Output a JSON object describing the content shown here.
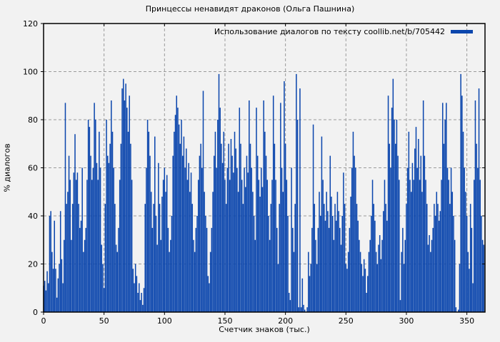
{
  "title": "Принцессы ненавидят драконов (Ольга Пашнина)",
  "legend": {
    "label": "Использование диалогов по тексту coollib.net/b/705442"
  },
  "colors": {
    "background": "#f2f2f2",
    "bar": "#0b46ad",
    "grid": "#9b9b9b",
    "axis": "#000000"
  },
  "chart_data": {
    "type": "bar",
    "title": "Принцессы ненавидят драконов (Ольга Пашнина)",
    "legend_entries": [
      "Использование диалогов по тексту coollib.net/b/705442"
    ],
    "legend_position": "top-right-inside",
    "xlabel": "Счетчик знаков (тыс.)",
    "ylabel": "% диалогов",
    "xlim": [
      0,
      365
    ],
    "ylim": [
      0,
      120
    ],
    "x_ticks": [
      0,
      50,
      100,
      150,
      200,
      250,
      300,
      350
    ],
    "y_ticks": [
      0,
      20,
      40,
      60,
      80,
      100,
      120
    ],
    "grid": true,
    "x_start": 0,
    "x_step": 1,
    "values": [
      11,
      13,
      9,
      17,
      12,
      40,
      42,
      25,
      18,
      38,
      18,
      6,
      14,
      20,
      42,
      22,
      12,
      30,
      87,
      45,
      50,
      65,
      55,
      30,
      45,
      58,
      74,
      55,
      58,
      45,
      35,
      38,
      60,
      25,
      30,
      35,
      55,
      80,
      77,
      65,
      55,
      60,
      87,
      80,
      62,
      55,
      75,
      60,
      28,
      20,
      10,
      45,
      80,
      65,
      62,
      70,
      88,
      75,
      60,
      45,
      28,
      25,
      35,
      55,
      70,
      93,
      97,
      88,
      95,
      85,
      75,
      90,
      70,
      55,
      18,
      12,
      20,
      15,
      8,
      12,
      5,
      8,
      3,
      10,
      45,
      60,
      80,
      75,
      65,
      50,
      35,
      45,
      73,
      40,
      28,
      62,
      45,
      30,
      48,
      55,
      60,
      50,
      57,
      35,
      25,
      30,
      40,
      65,
      75,
      82,
      90,
      85,
      78,
      70,
      80,
      65,
      73,
      60,
      68,
      55,
      62,
      50,
      58,
      45,
      30,
      25,
      35,
      40,
      55,
      65,
      70,
      60,
      92,
      50,
      40,
      35,
      15,
      12,
      25,
      35,
      50,
      65,
      75,
      60,
      80,
      99,
      85,
      70,
      62,
      75,
      55,
      45,
      60,
      70,
      55,
      72,
      65,
      58,
      75,
      68,
      60,
      50,
      85,
      70,
      55,
      45,
      60,
      52,
      65,
      58,
      88,
      70,
      60,
      50,
      40,
      30,
      85,
      65,
      55,
      48,
      60,
      52,
      88,
      75,
      65,
      55,
      40,
      30,
      45,
      55,
      90,
      70,
      55,
      35,
      20,
      45,
      87,
      60,
      50,
      96,
      70,
      55,
      40,
      8,
      5,
      60,
      35,
      25,
      45,
      99,
      80,
      2,
      93,
      2,
      14,
      3,
      1,
      0,
      2,
      25,
      15,
      20,
      35,
      78,
      45,
      30,
      20,
      35,
      50,
      40,
      73,
      55,
      45,
      38,
      50,
      42,
      35,
      65,
      48,
      40,
      30,
      45,
      38,
      50,
      42,
      35,
      28,
      40,
      58,
      45,
      20,
      18,
      25,
      35,
      48,
      60,
      75,
      65,
      60,
      45,
      38,
      30,
      25,
      20,
      15,
      22,
      18,
      8,
      15,
      25,
      30,
      40,
      55,
      45,
      38,
      25,
      20,
      28,
      32,
      22,
      30,
      42,
      55,
      45,
      38,
      90,
      70,
      60,
      85,
      97,
      80,
      70,
      80,
      65,
      55,
      5,
      25,
      35,
      20,
      30,
      45,
      60,
      75,
      55,
      50,
      62,
      55,
      68,
      77,
      60,
      72,
      55,
      65,
      50,
      88,
      65,
      55,
      45,
      28,
      32,
      25,
      30,
      35,
      45,
      40,
      50,
      45,
      38,
      42,
      55,
      87,
      70,
      80,
      87,
      60,
      55,
      45,
      60,
      50,
      40,
      30,
      2,
      0,
      1,
      20,
      99,
      90,
      75,
      60,
      50,
      40,
      25,
      18,
      45,
      35,
      12,
      55,
      88,
      70,
      60,
      93,
      55,
      40,
      30,
      28
    ]
  }
}
